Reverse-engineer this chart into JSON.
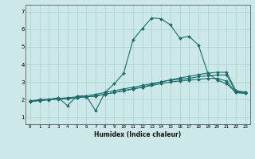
{
  "title": "",
  "xlabel": "Humidex (Indice chaleur)",
  "bg_color": "#cce8e8",
  "grid_color": "#aad0d0",
  "line_color": "#1a6b6b",
  "x_ticks": [
    0,
    1,
    2,
    3,
    4,
    5,
    6,
    7,
    8,
    9,
    10,
    11,
    12,
    13,
    14,
    15,
    16,
    17,
    18,
    19,
    20,
    21,
    22,
    23
  ],
  "y_ticks": [
    1,
    2,
    3,
    4,
    5,
    6,
    7
  ],
  "ylim": [
    0.6,
    7.4
  ],
  "xlim": [
    -0.5,
    23.5
  ],
  "series": [
    [
      1.9,
      2.0,
      2.0,
      2.1,
      1.65,
      2.2,
      2.2,
      1.35,
      2.4,
      2.9,
      3.5,
      5.4,
      6.05,
      6.65,
      6.6,
      6.25,
      5.5,
      5.6,
      5.1,
      3.5,
      3.1,
      2.9,
      2.4,
      2.35
    ],
    [
      1.9,
      1.95,
      2.0,
      2.05,
      2.05,
      2.1,
      2.15,
      2.2,
      2.3,
      2.4,
      2.5,
      2.6,
      2.7,
      2.8,
      2.9,
      3.0,
      3.05,
      3.1,
      3.15,
      3.2,
      3.2,
      3.05,
      2.4,
      2.35
    ],
    [
      1.9,
      1.95,
      2.0,
      2.05,
      2.1,
      2.15,
      2.2,
      2.3,
      2.4,
      2.5,
      2.6,
      2.7,
      2.8,
      2.9,
      3.0,
      3.1,
      3.15,
      3.2,
      3.3,
      3.35,
      3.4,
      3.4,
      2.45,
      2.4
    ],
    [
      1.88,
      1.93,
      1.98,
      2.02,
      2.05,
      2.1,
      2.15,
      2.2,
      2.3,
      2.4,
      2.5,
      2.6,
      2.7,
      2.85,
      3.0,
      3.12,
      3.22,
      3.32,
      3.42,
      3.5,
      3.55,
      3.55,
      2.5,
      2.42
    ]
  ]
}
